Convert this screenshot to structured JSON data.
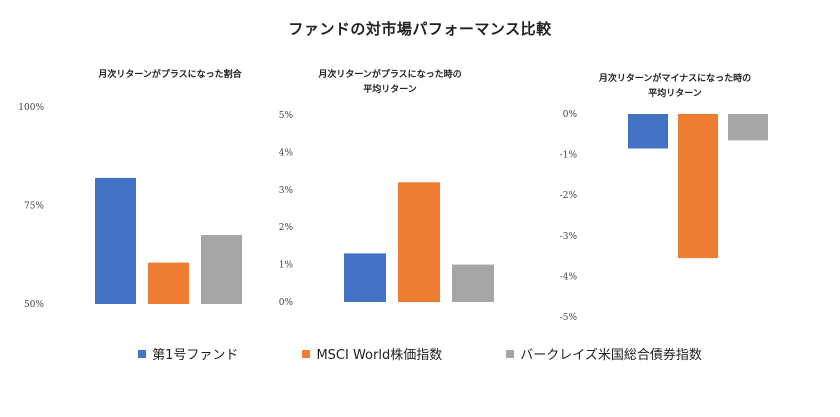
{
  "title": "ファンドの対市場パフォーマンス比較",
  "colors": {
    "fund": "#4472C4",
    "msci": "#ED7D31",
    "barclays": "#A5A5A5"
  },
  "legend": [
    "第1号ファンド",
    "MSCI World株価指数",
    "バークレイズ米国総合債券指数"
  ],
  "chart_data": [
    {
      "type": "bar",
      "title_lines": [
        "月次リターンがプラスになった割合"
      ],
      "categories": [
        "第1号ファンド",
        "MSCI World株価指数",
        "バークレイズ米国総合債券指数"
      ],
      "values": [
        82,
        60.5,
        67.5
      ],
      "ylim": [
        50,
        100
      ],
      "ticks": [
        50,
        75,
        100
      ],
      "tick_labels": [
        "50%",
        "75%",
        "100%"
      ]
    },
    {
      "type": "bar",
      "title_lines": [
        "月次リターンがプラスになった時の",
        "平均リターン"
      ],
      "categories": [
        "第1号ファンド",
        "MSCI World株価指数",
        "バークレイズ米国総合債券指数"
      ],
      "values": [
        1.3,
        3.2,
        1.0
      ],
      "ylim": [
        0,
        5
      ],
      "ticks": [
        0,
        1,
        2,
        3,
        4,
        5
      ],
      "tick_labels": [
        "0%",
        "1%",
        "2%",
        "3%",
        "4%",
        "5%"
      ]
    },
    {
      "type": "bar",
      "title_lines": [
        "月次リターンがマイナスになった時の",
        "平均リターン"
      ],
      "categories": [
        "第1号ファンド",
        "MSCI World株価指数",
        "バークレイズ米国総合債券指数"
      ],
      "values": [
        -0.85,
        -3.55,
        -0.65
      ],
      "ylim": [
        -5,
        0
      ],
      "ticks": [
        0,
        -1,
        -2,
        -3,
        -4,
        -5
      ],
      "tick_labels": [
        "0%",
        "-1%",
        "-2%",
        "-3%",
        "-4%",
        "-5%"
      ]
    }
  ]
}
